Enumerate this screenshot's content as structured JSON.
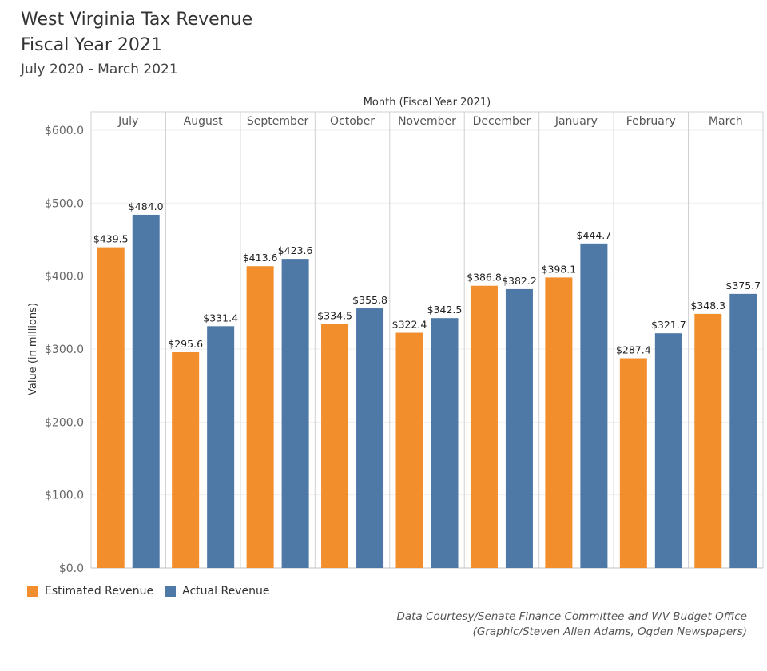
{
  "chart_data": {
    "type": "bar",
    "title": [
      "West Virginia Tax Revenue",
      "Fiscal Year 2021"
    ],
    "subtitle": "July 2020 - March 2021",
    "column_header": "Month (Fiscal Year 2021)",
    "ylabel": "Value (in millions)",
    "ylim": [
      0,
      600
    ],
    "yticks": [
      0,
      100,
      200,
      300,
      400,
      500,
      600
    ],
    "ytick_labels": [
      "$0.0",
      "$100.0",
      "$200.0",
      "$300.0",
      "$400.0",
      "$500.0",
      "$600.0"
    ],
    "grid": true,
    "legend_position": "bottom-left",
    "categories": [
      "July",
      "August",
      "September",
      "October",
      "November",
      "December",
      "January",
      "February",
      "March"
    ],
    "series": [
      {
        "name": "Estimated Revenue",
        "color": "#F28E2B",
        "values": [
          439.5,
          295.6,
          413.6,
          334.5,
          322.4,
          386.8,
          398.1,
          287.4,
          348.3
        ],
        "labels": [
          "$439.5",
          "$295.6",
          "$413.6",
          "$334.5",
          "$322.4",
          "$386.8",
          "$398.1",
          "$287.4",
          "$348.3"
        ]
      },
      {
        "name": "Actual Revenue",
        "color": "#4E79A7",
        "values": [
          484.0,
          331.4,
          423.6,
          355.8,
          342.5,
          382.2,
          444.7,
          321.7,
          375.7
        ],
        "labels": [
          "$484.0",
          "$331.4",
          "$423.6",
          "$355.8",
          "$342.5",
          "$382.2",
          "$444.7",
          "$321.7",
          "$375.7"
        ]
      }
    ]
  },
  "credits": [
    "Data Courtesy/Senate Finance Committee and WV Budget Office",
    "(Graphic/Steven Allen Adams, Ogden Newspapers)"
  ]
}
